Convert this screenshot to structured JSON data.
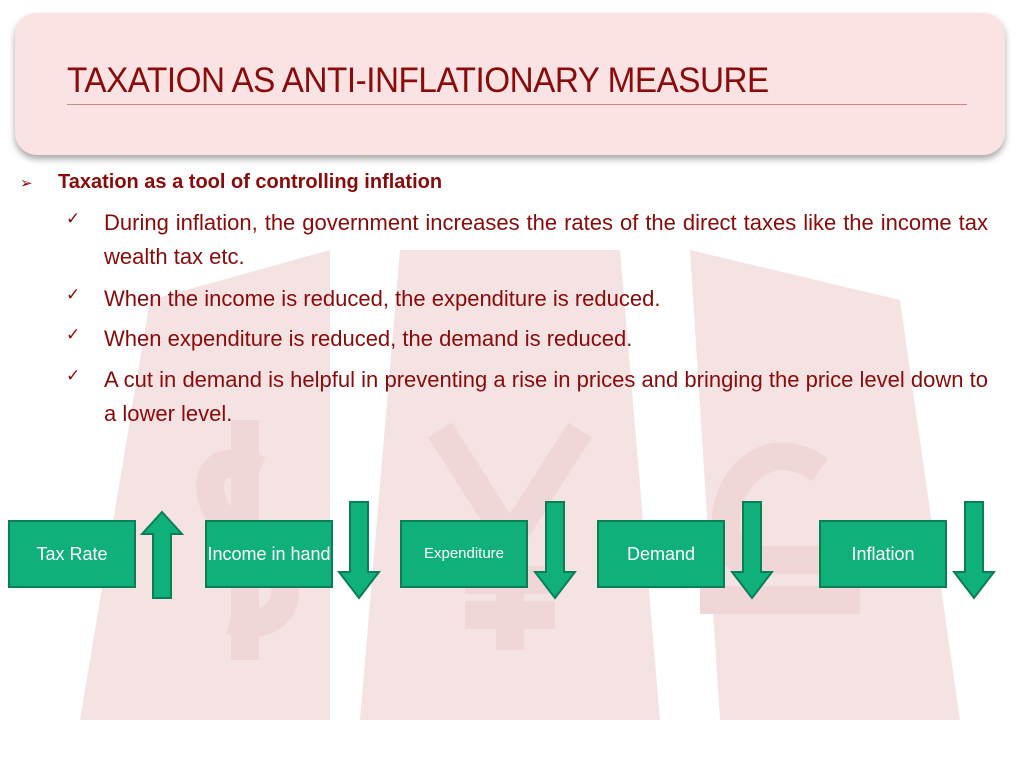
{
  "title": "TAXATION AS ANTI-INFLATIONARY MEASURE",
  "heading": {
    "text": "Taxation as a tool of controlling inflation",
    "marker_icon": "arrow-bullet-icon"
  },
  "items": [
    "During inflation, the government increases the rates of the direct taxes like the income tax wealth tax etc.",
    "When the income is reduced, the expenditure is reduced.",
    "When expenditure is reduced, the demand is reduced.",
    "A cut in demand is helpful in preventing a rise in prices and bringing the price level down to a lower level."
  ],
  "flow": [
    {
      "label": "Tax Rate",
      "direction": "up"
    },
    {
      "label": "Income in hand",
      "direction": "down"
    },
    {
      "label": "Expenditure",
      "direction": "down"
    },
    {
      "label": "Demand",
      "direction": "down"
    },
    {
      "label": "Inflation",
      "direction": "down"
    }
  ],
  "colors": {
    "title": "#8b0a0a",
    "title_bg": "#fbe3e3",
    "box_fill": "#10b07a",
    "box_border": "#0a7e57",
    "watermark": "#f3dede"
  }
}
